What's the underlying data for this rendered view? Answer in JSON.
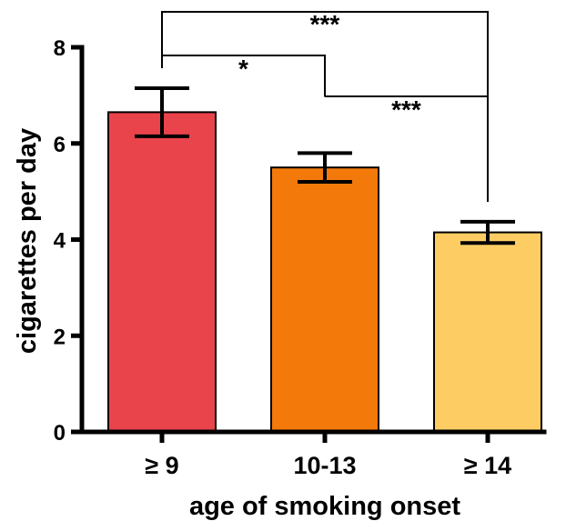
{
  "chart_data": {
    "type": "bar",
    "categories": [
      "≥ 9",
      "10-13",
      "≥ 14"
    ],
    "values": [
      6.65,
      5.5,
      4.15
    ],
    "error": [
      0.5,
      0.3,
      0.22
    ],
    "colors": [
      "#e9434c",
      "#f2790a",
      "#fdcd64"
    ],
    "xlabel": "age of smoking onset",
    "ylabel": "cigarettes per day",
    "ylim": [
      0,
      8
    ],
    "yticks": [
      0,
      2,
      4,
      6,
      8
    ],
    "significance": [
      {
        "from": 0,
        "to": 2,
        "label": "***"
      },
      {
        "from": 0,
        "to": 1,
        "label": "*"
      },
      {
        "from": 1,
        "to": 2,
        "label": "***"
      }
    ],
    "grid": false,
    "legend": "none"
  }
}
